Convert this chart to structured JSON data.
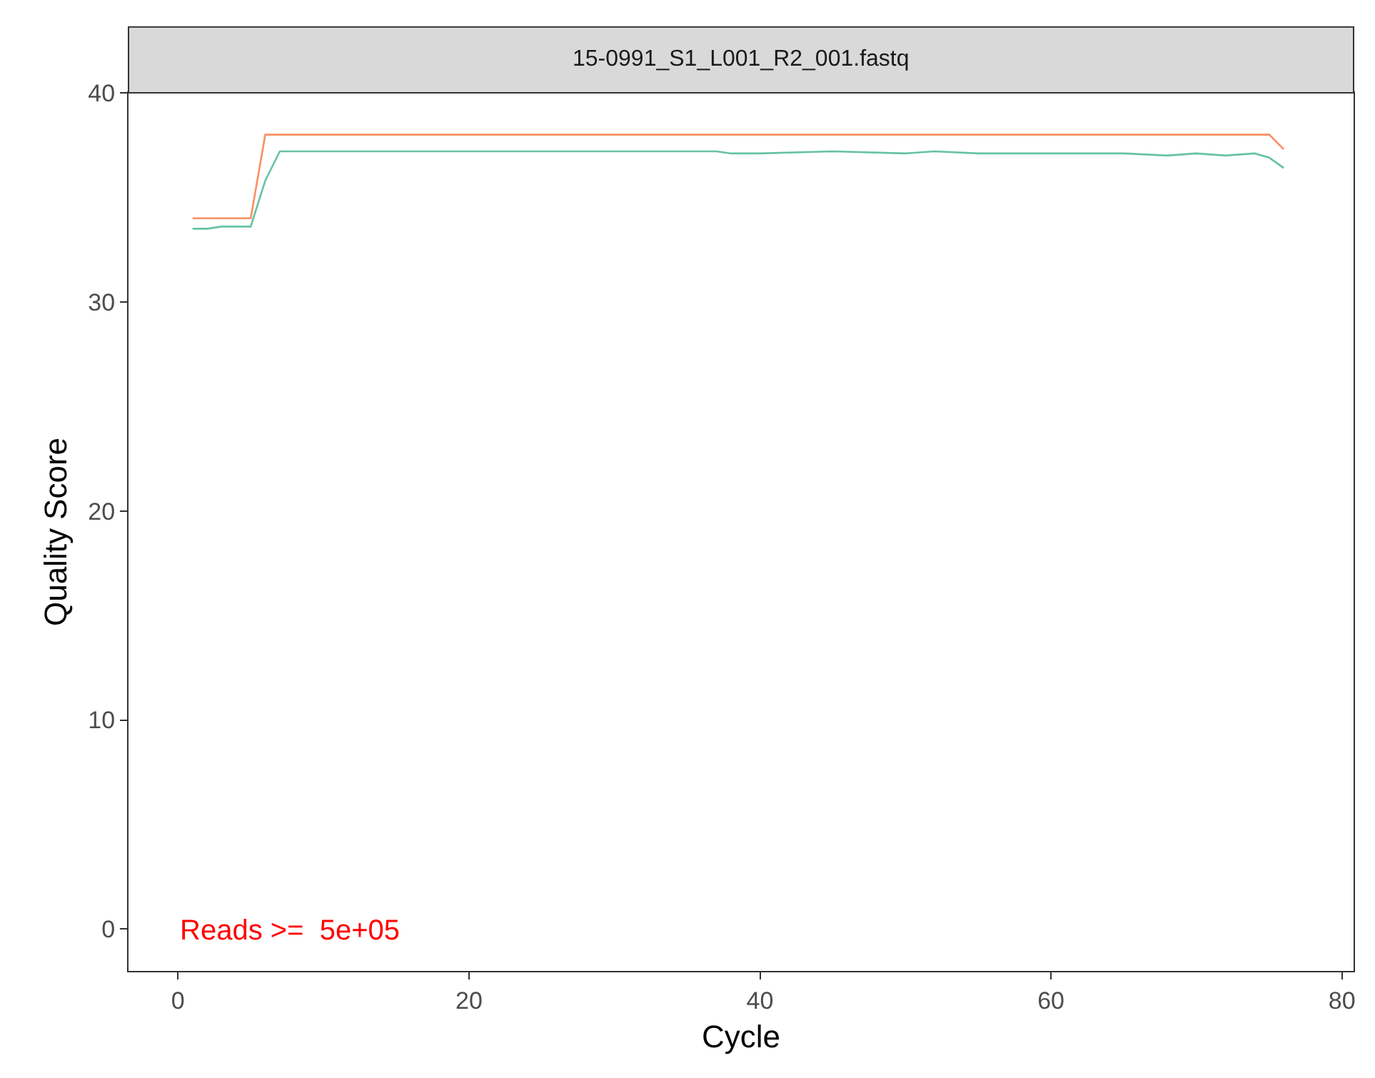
{
  "chart_data": {
    "type": "line",
    "title": "15-0991_S1_L001_R2_001.fastq",
    "xlabel": "Cycle",
    "ylabel": "Quality Score",
    "xlim": [
      -3.4,
      80.8
    ],
    "xticks": [
      0,
      20,
      40,
      60,
      80
    ],
    "ylim": [
      -2,
      40
    ],
    "yticks": [
      0,
      10,
      20,
      30,
      40
    ],
    "marker": "none",
    "line_style": "solid",
    "series": [
      {
        "color": "#66c2a5",
        "x": [
          1,
          2,
          3,
          5,
          6,
          7,
          20,
          37,
          38,
          40,
          45,
          50,
          52,
          55,
          60,
          65,
          68,
          70,
          72,
          74,
          75,
          76
        ],
        "values": [
          33.5,
          33.5,
          33.6,
          33.6,
          35.8,
          37.2,
          37.2,
          37.2,
          37.1,
          37.1,
          37.2,
          37.1,
          37.2,
          37.1,
          37.1,
          37.1,
          37.0,
          37.1,
          37.0,
          37.1,
          36.9,
          36.4
        ]
      },
      {
        "color": "#fc8d62",
        "x": [
          1,
          5,
          6,
          75,
          76
        ],
        "values": [
          34,
          34,
          38,
          38,
          37.3
        ]
      }
    ],
    "annotations": [
      "Reads >=  5e+05"
    ]
  }
}
